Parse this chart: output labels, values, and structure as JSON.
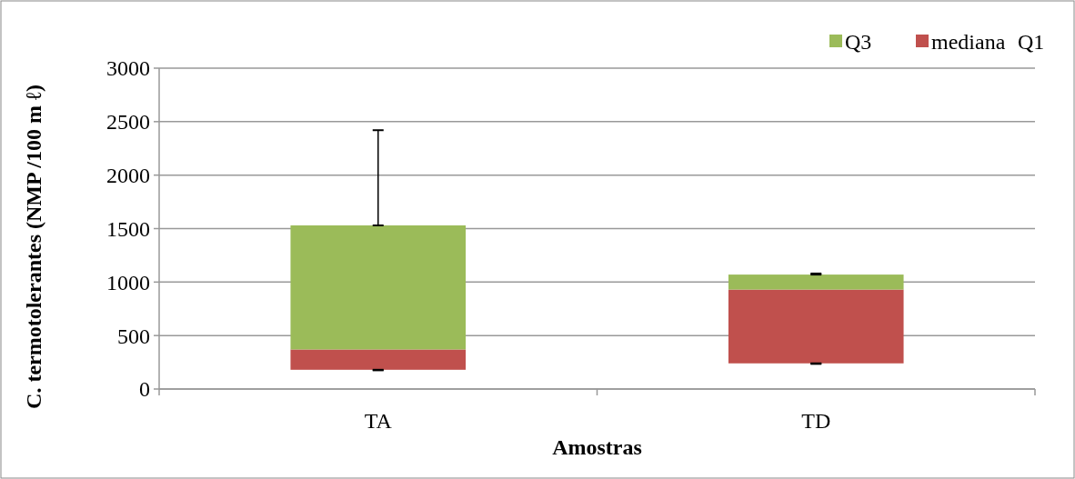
{
  "chart_data": {
    "type": "bar",
    "xlabel": "Amostras",
    "ylabel": "C. termotolerantes (NMP /100 m ℓ)",
    "categories": [
      "TA",
      "TD"
    ],
    "series": [
      {
        "name": "mediana",
        "color": "#c0504d",
        "base": [
          180,
          240
        ],
        "values": [
          190,
          690
        ],
        "errors": [
          [
            175,
            180
          ],
          [
            235,
            240
          ]
        ]
      },
      {
        "name": "Q3",
        "color": "#9bbb59",
        "base": [
          370,
          930
        ],
        "values": [
          1160,
          140
        ],
        "errors": [
          [
            1530,
            2420
          ],
          [
            1070,
            1080
          ]
        ]
      }
    ],
    "annotations": [
      "Q1"
    ],
    "ylim": [
      0,
      3000
    ],
    "yticks": [
      0,
      500,
      1000,
      1500,
      2000,
      2500,
      3000
    ],
    "grid": "y",
    "legend": "top right"
  }
}
